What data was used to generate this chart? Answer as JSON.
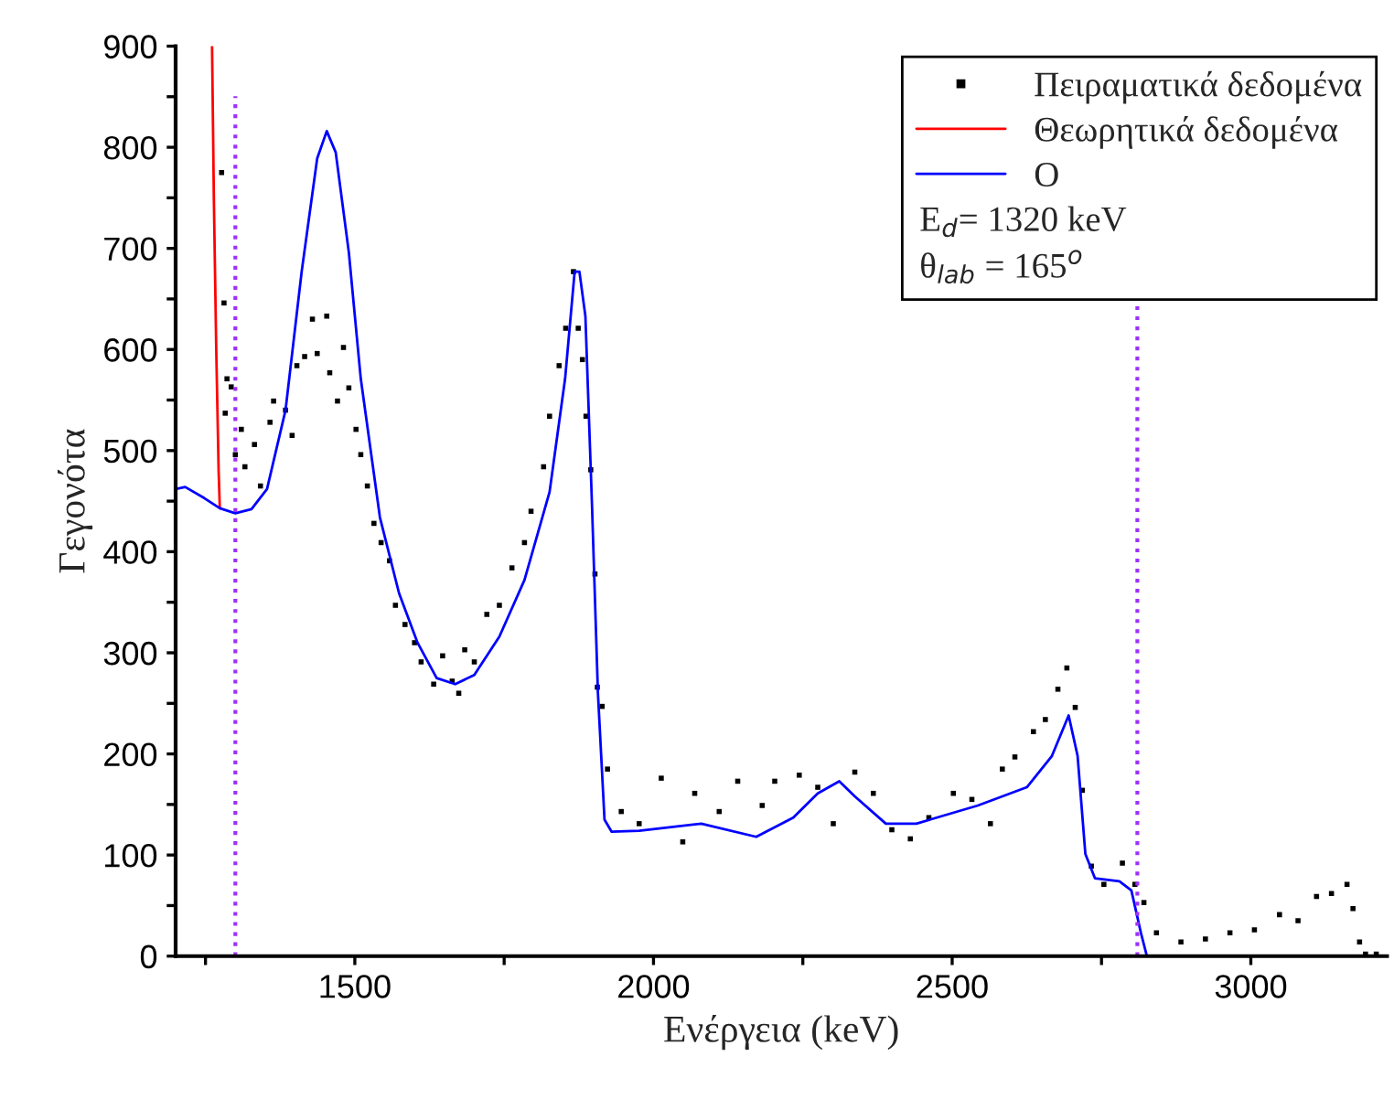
{
  "chart_data": {
    "type": "scatter",
    "xlabel": "Ενέργεια (keV)",
    "ylabel": "Γεγονότα",
    "xlim": [
      1200,
      3228
    ],
    "ylim": [
      0,
      900
    ],
    "xticks": [
      {
        "value": 1250,
        "label": null
      },
      1500,
      {
        "value": 1750,
        "label": null
      },
      2000,
      {
        "value": 2250,
        "label": null
      },
      2500,
      {
        "value": 2750,
        "label": null
      },
      3000
    ],
    "yticks": [
      0,
      {
        "value": 50,
        "label": null
      },
      100,
      {
        "value": 150,
        "label": null
      },
      200,
      {
        "value": 250,
        "label": null
      },
      300,
      {
        "value": 350,
        "label": null
      },
      400,
      {
        "value": 450,
        "label": null
      },
      500,
      {
        "value": 550,
        "label": null
      },
      600,
      {
        "value": 650,
        "label": null
      },
      700,
      {
        "value": 750,
        "label": null
      },
      800,
      {
        "value": 850,
        "label": null
      },
      900
    ],
    "grid": false,
    "legend": "top right",
    "series": [
      {
        "name": "Πειραματικά δεδομένα",
        "marker": "square",
        "color": "#000000",
        "x": [
          1277,
          1281,
          1283,
          1286,
          1293,
          1300,
          1310,
          1316,
          1332,
          1342,
          1358,
          1364,
          1384,
          1395,
          1403,
          1416,
          1429,
          1437,
          1453,
          1458,
          1471,
          1481,
          1490,
          1502,
          1510,
          1521,
          1532,
          1544,
          1558,
          1568,
          1584,
          1600,
          1611,
          1632,
          1647,
          1663,
          1674,
          1684,
          1700,
          1721,
          1742,
          1763,
          1784,
          1795,
          1816,
          1826,
          1842,
          1853,
          1866,
          1874,
          1881,
          1887,
          1895,
          1902,
          1906,
          1914,
          1923,
          1946,
          1976,
          2013,
          2049,
          2069,
          2110,
          2141,
          2182,
          2203,
          2244,
          2275,
          2301,
          2337,
          2368,
          2399,
          2430,
          2461,
          2502,
          2533,
          2564,
          2584,
          2605,
          2636,
          2656,
          2677,
          2692,
          2706,
          2718,
          2733,
          2754,
          2785,
          2806,
          2821,
          2842,
          2883,
          2924,
          2965,
          3006,
          3048,
          3079,
          3110,
          3135,
          3161,
          3171,
          3182,
          3192,
          3210
        ],
        "values": [
          775,
          646,
          537,
          571,
          563,
          496,
          521,
          484,
          506,
          465,
          528,
          549,
          540,
          515,
          584,
          593,
          630,
          596,
          633,
          577,
          549,
          602,
          562,
          521,
          496,
          465,
          428,
          409,
          391,
          347,
          328,
          310,
          291,
          269,
          297,
          272,
          260,
          303,
          291,
          338,
          347,
          384,
          409,
          440,
          484,
          534,
          584,
          621,
          677,
          621,
          590,
          534,
          481,
          378,
          266,
          247,
          185,
          143,
          131,
          176,
          113,
          161,
          143,
          173,
          149,
          173,
          179,
          167,
          131,
          182,
          161,
          125,
          116,
          137,
          161,
          155,
          131,
          185,
          197,
          222,
          234,
          264,
          285,
          246,
          164,
          89,
          71,
          92,
          71,
          53,
          23,
          14,
          17,
          23,
          26,
          41,
          35,
          59,
          62,
          71,
          47,
          14,
          2,
          2
        ]
      },
      {
        "name": "Θεωρητικά δεδομένα",
        "type": "line",
        "marker": "none",
        "color": "#ff0000",
        "x": [
          1261,
          1264,
          1268,
          1272,
          1274
        ],
        "values": [
          900,
          750,
          600,
          480,
          443
        ]
      },
      {
        "name": "O",
        "type": "line",
        "marker": "none",
        "color": "#0000ff",
        "x": [
          1200,
          1216,
          1248,
          1274,
          1300,
          1327,
          1353,
          1384,
          1411,
          1437,
          1453,
          1468,
          1490,
          1510,
          1542,
          1574,
          1605,
          1637,
          1668,
          1700,
          1742,
          1784,
          1826,
          1852,
          1868,
          1876,
          1886,
          1897,
          1907,
          1918,
          1930,
          1976,
          2080,
          2172,
          2234,
          2275,
          2311,
          2337,
          2389,
          2440,
          2543,
          2625,
          2667,
          2695,
          2710,
          2723,
          2739,
          2780,
          2800,
          2816,
          2826,
          3228
        ],
        "values": [
          462,
          464,
          453,
          443,
          438,
          442,
          462,
          540,
          677,
          789,
          816,
          795,
          696,
          571,
          434,
          359,
          310,
          275,
          269,
          278,
          316,
          372,
          459,
          571,
          677,
          677,
          633,
          447,
          260,
          135,
          123,
          124,
          131,
          118,
          137,
          161,
          173,
          158,
          131,
          131,
          149,
          167,
          198,
          238,
          198,
          101,
          77,
          74,
          65,
          23,
          0,
          0
        ]
      }
    ],
    "ref_lines": [
      {
        "axis": "x",
        "value": 1300,
        "color": "#9b30ff",
        "line_style": "dotted"
      },
      {
        "axis": "x",
        "value": 2810,
        "color": "#9b30ff",
        "line_style": "dotted"
      }
    ],
    "annotations": [
      "E$_{d}$= 1320 keV",
      "θ$_{lab}$ = 165$^{o}$"
    ]
  }
}
